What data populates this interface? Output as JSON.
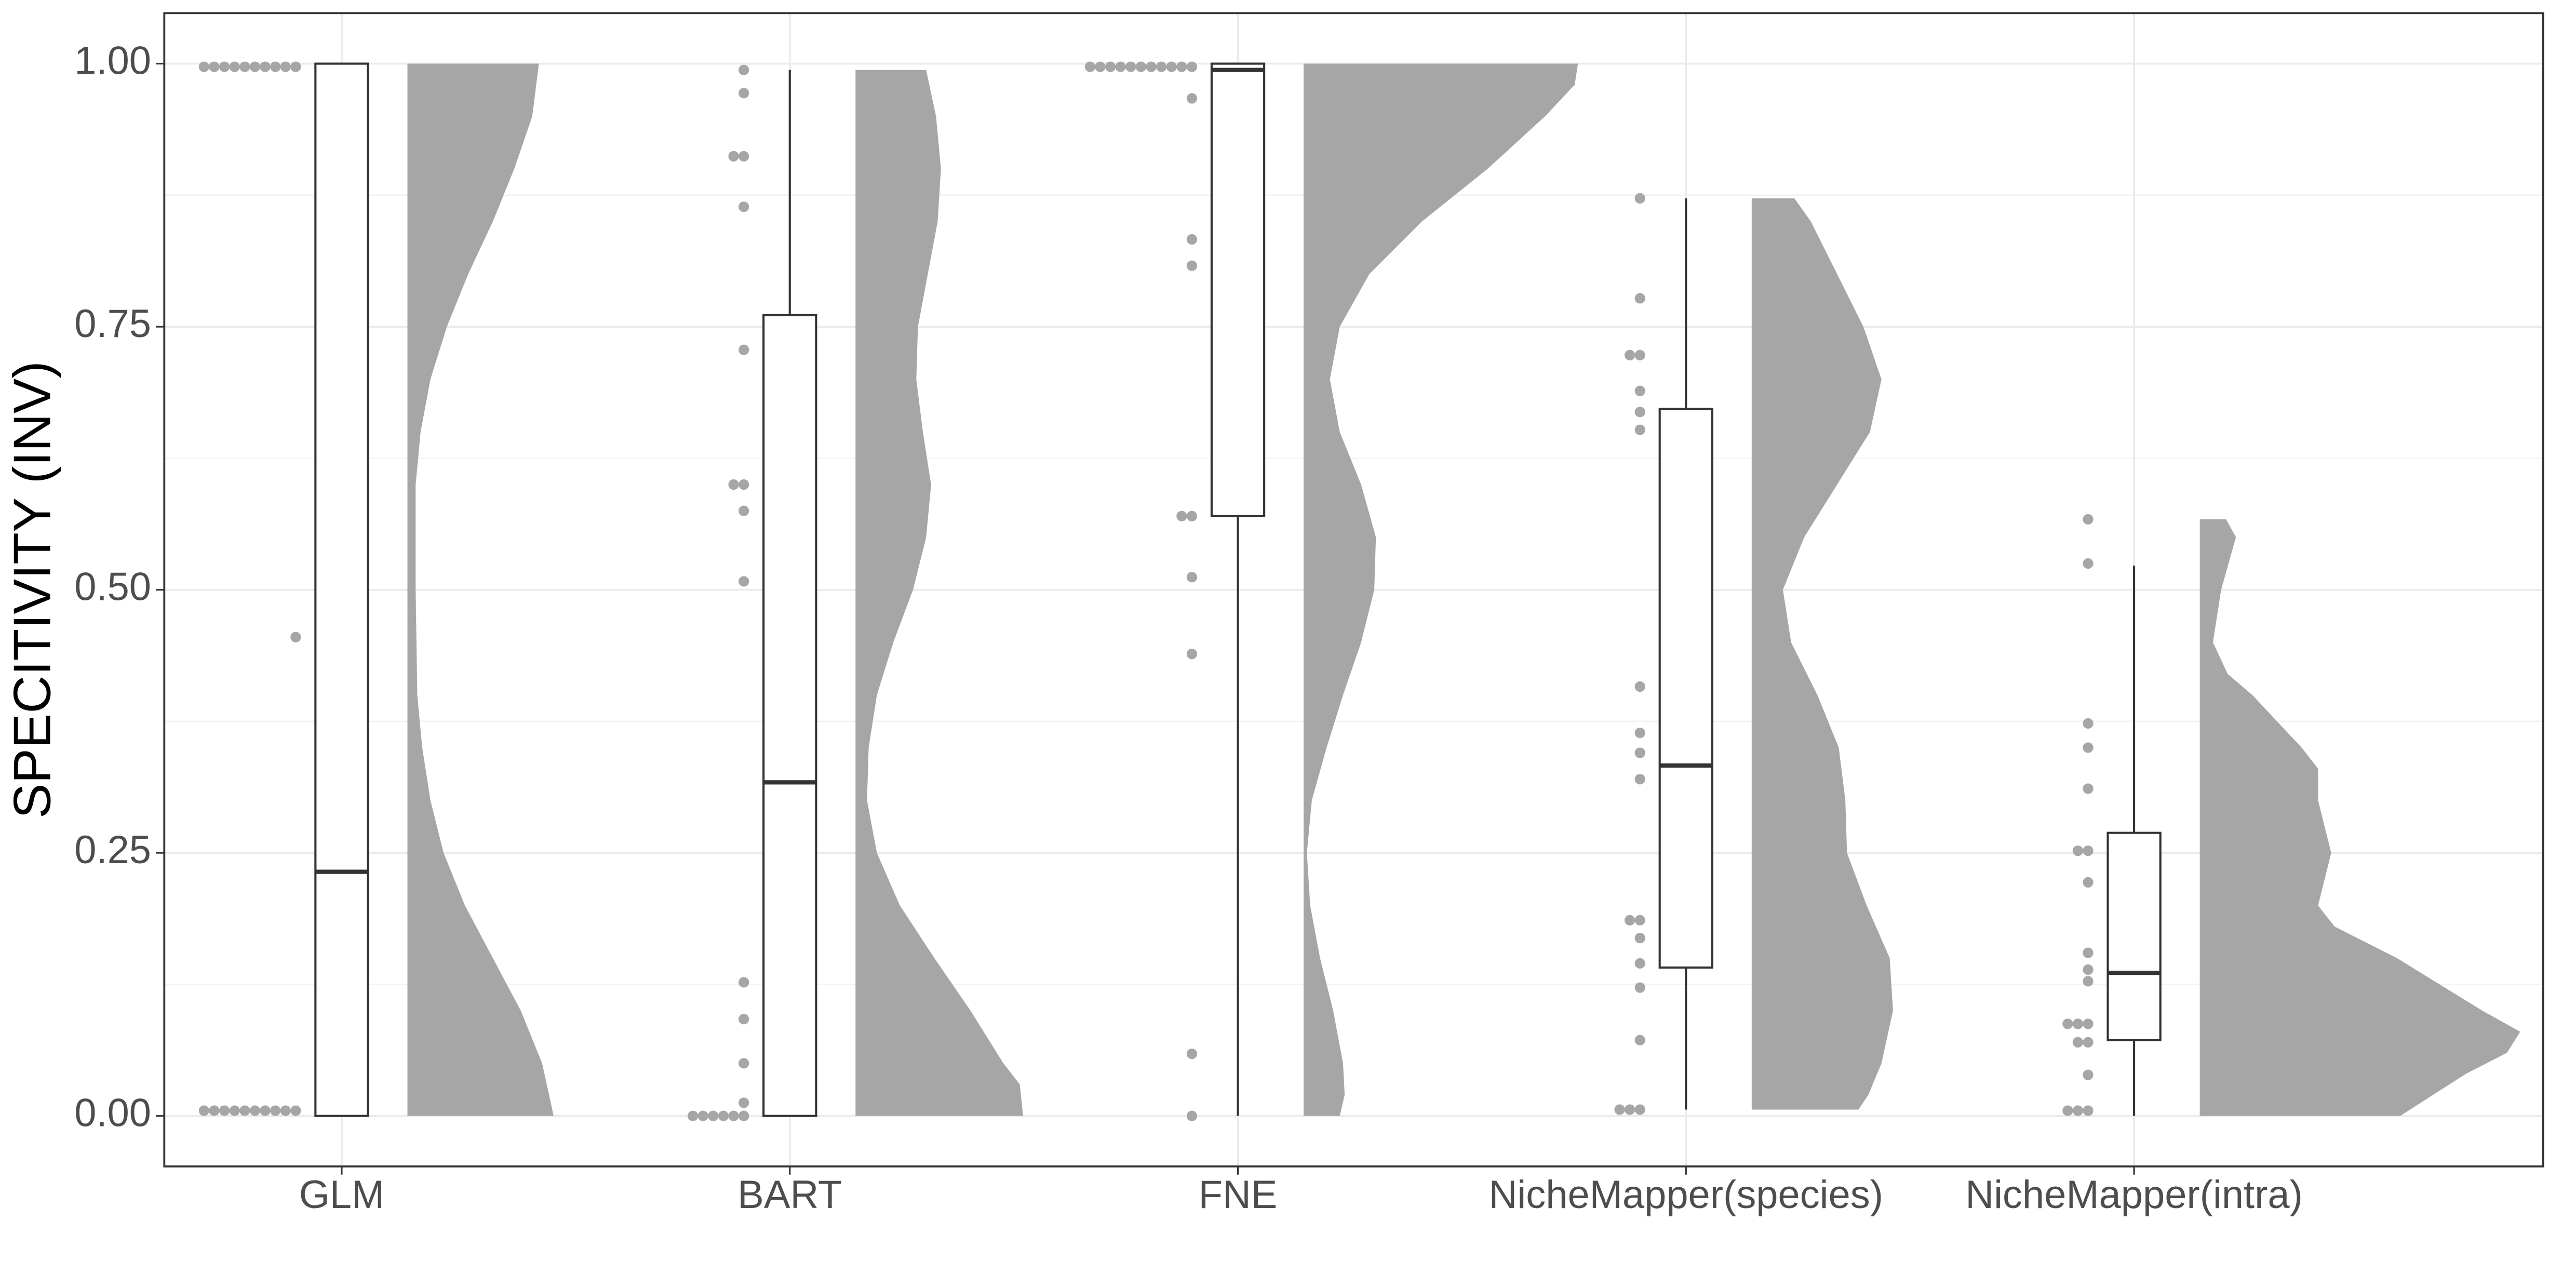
{
  "chart_data": {
    "type": "raincloud",
    "ylabel": "SPECITIVITY (INV)",
    "categories": [
      "GLM",
      "BART",
      "FNE",
      "NicheMapper(species)",
      "NicheMapper(intra)"
    ],
    "ylim": [
      -0.048,
      1.048
    ],
    "yticks": [
      {
        "value": 0,
        "label": "0.00"
      },
      {
        "value": 0.25,
        "label": "0.25"
      },
      {
        "value": 0.5,
        "label": "0.50"
      },
      {
        "value": 0.75,
        "label": "0.75"
      },
      {
        "value": 1,
        "label": "1.00"
      }
    ],
    "grid": true,
    "point_color": "#a6a6a6",
    "density_color": "#a6a6a6",
    "box_color": "#333333",
    "groups": [
      {
        "points": [
          0.997,
          0.997,
          0.997,
          0.997,
          0.997,
          0.997,
          0.997,
          0.997,
          0.997,
          0.997,
          0.455,
          0.005,
          0.005,
          0.005,
          0.005,
          0.005,
          0.005,
          0.005,
          0.005,
          0.005,
          0.005
        ],
        "box": {
          "min": 0,
          "q1": 0,
          "median": 0.232,
          "q3": 1.0,
          "max": 1.0
        },
        "density": {
          "y": [
            1.0,
            0.95,
            0.9,
            0.85,
            0.8,
            0.75,
            0.7,
            0.65,
            0.6,
            0.5,
            0.4,
            0.35,
            0.3,
            0.25,
            0.2,
            0.15,
            0.1,
            0.05,
            0.0
          ],
          "width": [
            0.8,
            0.76,
            0.65,
            0.52,
            0.37,
            0.24,
            0.14,
            0.08,
            0.05,
            0.05,
            0.06,
            0.09,
            0.14,
            0.22,
            0.35,
            0.52,
            0.69,
            0.82,
            0.89
          ]
        }
      },
      {
        "points": [
          0.994,
          0.972,
          0.912,
          0.912,
          0.864,
          0.728,
          0.6,
          0.6,
          0.575,
          0.508,
          0.127,
          0.092,
          0.05,
          0.0125,
          0,
          0,
          0,
          0,
          0,
          0
        ],
        "box": {
          "min": 0,
          "q1": 0,
          "median": 0.317,
          "q3": 0.761,
          "max": 0.994
        },
        "density": {
          "y": [
            0.994,
            0.95,
            0.9,
            0.85,
            0.8,
            0.75,
            0.7,
            0.65,
            0.6,
            0.55,
            0.5,
            0.45,
            0.4,
            0.35,
            0.3,
            0.25,
            0.2,
            0.15,
            0.1,
            0.05,
            0.03,
            0.0
          ],
          "width": [
            0.43,
            0.49,
            0.52,
            0.5,
            0.44,
            0.38,
            0.37,
            0.41,
            0.46,
            0.43,
            0.35,
            0.23,
            0.13,
            0.08,
            0.07,
            0.13,
            0.27,
            0.48,
            0.7,
            0.9,
            1.0,
            1.02
          ]
        }
      },
      {
        "points": [
          0.997,
          0.997,
          0.997,
          0.997,
          0.997,
          0.997,
          0.997,
          0.997,
          0.997,
          0.997,
          0.997,
          0.967,
          0.833,
          0.808,
          0.57,
          0.57,
          0.512,
          0.439,
          0.059,
          0
        ],
        "box": {
          "min": 0,
          "q1": 0.57,
          "median": 0.994,
          "q3": 1.0,
          "max": 1.0
        },
        "density": {
          "y": [
            1.0,
            0.98,
            0.95,
            0.9,
            0.85,
            0.8,
            0.75,
            0.7,
            0.65,
            0.6,
            0.55,
            0.5,
            0.45,
            0.4,
            0.35,
            0.3,
            0.25,
            0.2,
            0.15,
            0.1,
            0.05,
            0.02,
            0.0
          ],
          "width": [
            1.67,
            1.65,
            1.47,
            1.12,
            0.72,
            0.4,
            0.22,
            0.16,
            0.22,
            0.35,
            0.44,
            0.43,
            0.35,
            0.24,
            0.14,
            0.05,
            0.02,
            0.04,
            0.1,
            0.18,
            0.24,
            0.25,
            0.22
          ]
        }
      },
      {
        "points": [
          0.872,
          0.777,
          0.723,
          0.723,
          0.689,
          0.669,
          0.652,
          0.408,
          0.364,
          0.345,
          0.32,
          0.186,
          0.186,
          0.169,
          0.145,
          0.122,
          0.072,
          0.006,
          0.006,
          0.006
        ],
        "box": {
          "min": 0.006,
          "q1": 0.141,
          "median": 0.333,
          "q3": 0.672,
          "max": 0.872
        },
        "density": {
          "y": [
            0.872,
            0.85,
            0.8,
            0.75,
            0.7,
            0.65,
            0.6,
            0.55,
            0.5,
            0.45,
            0.4,
            0.35,
            0.3,
            0.25,
            0.2,
            0.15,
            0.1,
            0.05,
            0.02,
            0.006
          ],
          "width": [
            0.26,
            0.36,
            0.52,
            0.68,
            0.79,
            0.72,
            0.52,
            0.32,
            0.19,
            0.24,
            0.4,
            0.53,
            0.57,
            0.58,
            0.7,
            0.84,
            0.86,
            0.79,
            0.71,
            0.65
          ]
        }
      },
      {
        "points": [
          0.567,
          0.525,
          0.373,
          0.35,
          0.311,
          0.252,
          0.252,
          0.222,
          0.155,
          0.139,
          0.128,
          0.0875,
          0.0875,
          0.0875,
          0.07,
          0.07,
          0.039,
          0.005,
          0.005,
          0.005
        ],
        "box": {
          "min": 0,
          "q1": 0.072,
          "median": 0.136,
          "q3": 0.269,
          "max": 0.523
        },
        "density": {
          "y": [
            0.567,
            0.55,
            0.5,
            0.45,
            0.42,
            0.4,
            0.35,
            0.33,
            0.3,
            0.25,
            0.2,
            0.18,
            0.15,
            0.1,
            0.08,
            0.06,
            0.04,
            0.02,
            0.0
          ],
          "width": [
            0.16,
            0.22,
            0.13,
            0.08,
            0.17,
            0.32,
            0.62,
            0.72,
            0.72,
            0.8,
            0.72,
            0.82,
            1.2,
            1.72,
            1.95,
            1.87,
            1.62,
            1.42,
            1.22
          ]
        }
      }
    ]
  }
}
